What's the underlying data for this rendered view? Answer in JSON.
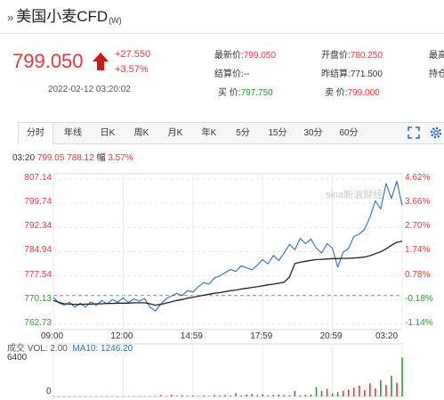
{
  "header": {
    "arrow": "»",
    "name": "美国小麦CFD",
    "suffix": "(W)"
  },
  "quote": {
    "price": "799.050",
    "change": "+27.550",
    "change_pct": "+3.57%",
    "datetime": "2022-02-12 03:20:02",
    "direction": "up",
    "fields": [
      {
        "label": "最新价:",
        "value": "799.050",
        "tone": "red"
      },
      {
        "label": "开盘价:",
        "value": "780.250",
        "tone": "red"
      },
      {
        "label": "最高",
        "value": "",
        "tone": "gray"
      },
      {
        "label": "结算价:",
        "value": "--",
        "tone": "gray"
      },
      {
        "label": "昨结算:",
        "value": "771.500",
        "tone": "gray"
      },
      {
        "label": "持仓",
        "value": "",
        "tone": "gray"
      },
      {
        "label": "买  价:",
        "value": "797.750",
        "tone": "green"
      },
      {
        "label": "卖  价:",
        "value": "799.000",
        "tone": "red"
      }
    ]
  },
  "tabs": [
    "分时",
    "年线",
    "日K",
    "周K",
    "月K",
    "年K",
    "5分",
    "15分",
    "30分",
    "60分"
  ],
  "active_tab": "分时",
  "info_line": {
    "time": "03:20",
    "price": "799.05",
    "avg": "788.12",
    "pct_label": "幅",
    "pct": "3.57%"
  },
  "watermark": "sina新浪财经",
  "chart_data": {
    "type": "line",
    "x_ticks": [
      "09:00",
      "12:00",
      "14:59",
      "17:59",
      "20:59",
      "03:20"
    ],
    "y_left_ticks": [
      "807.14",
      "799.74",
      "792.34",
      "784.94",
      "777.54",
      "770.13",
      "762.73"
    ],
    "y_right_ticks": [
      "4.62%",
      "3.66%",
      "2.70%",
      "1.74%",
      "0.78%",
      "-0.18%",
      "-1.14%"
    ],
    "ylim": [
      762.73,
      807.14
    ],
    "reference": 771.5,
    "series": [
      {
        "color": "#2b6fb8",
        "values": [
          771.0,
          769.3,
          768.6,
          769.5,
          767.9,
          769.2,
          768.0,
          769.6,
          768.5,
          770.0,
          769.0,
          770.3,
          769.5,
          770.8,
          769.4,
          770.5,
          769.8,
          770.6,
          768.0,
          766.8,
          768.9,
          770.5,
          771.4,
          772.2,
          771.5,
          773.0,
          772.6,
          774.2,
          775.5,
          775.0,
          776.9,
          777.5,
          778.5,
          779.5,
          778.9,
          780.6,
          780.0,
          779.4,
          780.8,
          782.5,
          781.2,
          783.8,
          782.2,
          784.5,
          787.2,
          785.5,
          789.0,
          787.4,
          788.8,
          786.0,
          784.5,
          787.4,
          786.0,
          780.2,
          784.8,
          785.9,
          789.6,
          790.3,
          791.8,
          795.5,
          800.5,
          798.0,
          805.8,
          801.2,
          806.5,
          799.05
        ]
      },
      {
        "color": "#222222",
        "values": [
          770.0,
          769.5,
          769.0,
          768.9,
          768.8,
          768.8,
          768.9,
          768.9,
          769.0,
          769.0,
          769.1,
          769.1,
          769.2,
          769.2,
          769.2,
          769.3,
          769.3,
          769.3,
          769.0,
          768.6,
          768.8,
          769.2,
          769.6,
          770.0,
          770.3,
          770.7,
          771.0,
          771.3,
          771.6,
          771.9,
          772.2,
          772.4,
          772.7,
          773.0,
          773.2,
          773.5,
          773.7,
          774.0,
          774.2,
          774.5,
          774.8,
          775.0,
          775.3,
          775.6,
          777.2,
          781.3,
          781.7,
          782.0,
          782.3,
          782.5,
          782.6,
          782.7,
          782.8,
          782.8,
          782.9,
          782.9,
          783.0,
          783.1,
          783.3,
          783.7,
          784.3,
          784.9,
          785.8,
          786.9,
          787.8,
          788.12
        ]
      }
    ],
    "volume": {
      "label": "成交",
      "vol_label": "VOL: 2.00",
      "ma_label": "MA10: 1246.20",
      "y_ticks": [
        "6400",
        "0"
      ],
      "ylim": [
        0,
        6400
      ],
      "bars": [
        20,
        10,
        15,
        10,
        30,
        10,
        20,
        15,
        10,
        25,
        10,
        40,
        20,
        30,
        25,
        50,
        35,
        40,
        70,
        60,
        220,
        50,
        300,
        120,
        200,
        80,
        150,
        100,
        180,
        90,
        260,
        140,
        220,
        110,
        520,
        160,
        300,
        400,
        200,
        340,
        180,
        260,
        300,
        240,
        180,
        900,
        160,
        250,
        300,
        1500,
        900,
        1200,
        500,
        700,
        900,
        1100,
        1400,
        1700,
        1000,
        2100,
        1300,
        2600,
        1800,
        3300,
        2200,
        6200
      ]
    }
  }
}
